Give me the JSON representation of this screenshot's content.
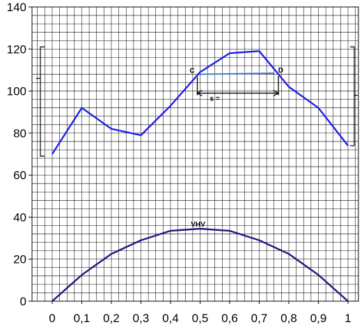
{
  "chart_data": {
    "type": "line",
    "x": [
      0,
      0.1,
      0.2,
      0.3,
      0.4,
      0.5,
      0.6,
      0.7,
      0.8,
      0.9,
      1
    ],
    "x_tick_labels": [
      "0",
      "0,1",
      "0,2",
      "0,3",
      "0,4",
      "0,5",
      "0,6",
      "0,7",
      "0,8",
      "0,9",
      "1"
    ],
    "y_tick_labels": [
      "0",
      "20",
      "40",
      "60",
      "80",
      "100",
      "120",
      "140"
    ],
    "ylim": [
      0,
      140
    ],
    "xlim": [
      0,
      1
    ],
    "grid": true,
    "series": [
      {
        "values": [
          70,
          92,
          82,
          79,
          93,
          109,
          118,
          119,
          102,
          92,
          74
        ],
        "color": "#1f1fe8"
      },
      {
        "values": [
          0,
          12.5,
          22.5,
          29,
          33.5,
          34.5,
          33.5,
          29,
          22.5,
          12.5,
          0
        ],
        "color": "#1a1a80"
      }
    ],
    "annotations": {
      "point_c": "C",
      "point_d": "D",
      "s_label": "s =",
      "curve_label": "VHV",
      "cd_line": {
        "x1": 0.5,
        "y1": 108,
        "x2": 0.75,
        "y2": 108.5,
        "color": "#4a7fd4"
      },
      "s_arrow": {
        "x1": 0.5,
        "x2": 0.76,
        "y": 99
      },
      "vhv_at": {
        "x": 0.5,
        "y": 34.5
      },
      "left_bracket": {
        "y_top": 121,
        "y_bottom": 69,
        "y_mid": 106
      },
      "right_bracket": {
        "y_top": 121,
        "y_bottom": 74,
        "y_mid": 98
      }
    }
  }
}
